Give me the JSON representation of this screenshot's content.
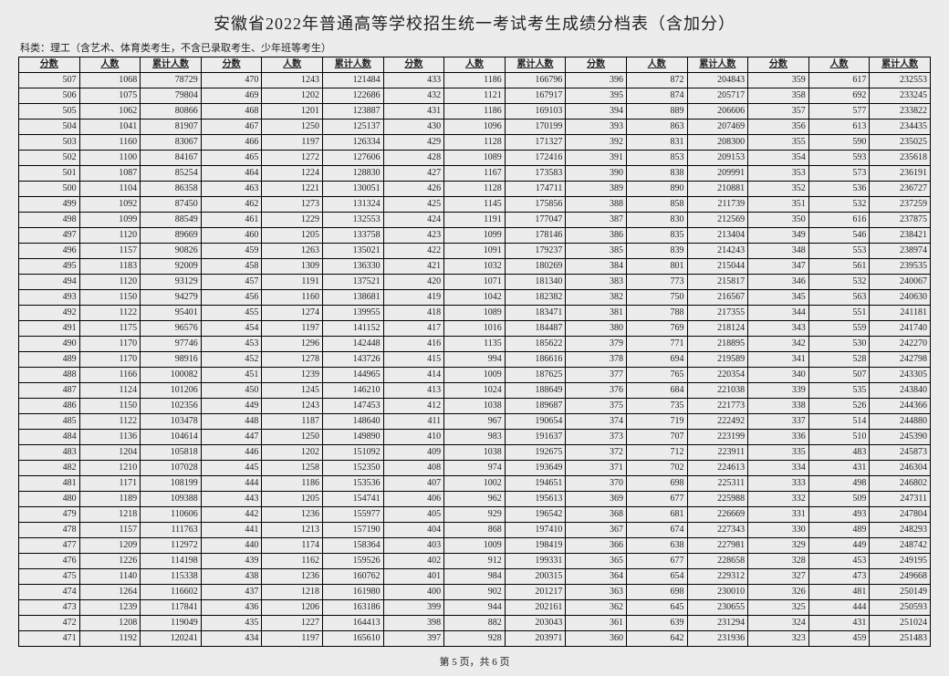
{
  "title": "安徽省2022年普通高等学校招生统一考试考生成绩分档表（含加分）",
  "subtitle": "科类：理工（含艺术、体育类考生，不含已录取考生、少年班等考生）",
  "footer": "第 5 页，共 6 页",
  "headers": [
    "分数",
    "人数",
    "累计人数",
    "分数",
    "人数",
    "累计人数",
    "分数",
    "人数",
    "累计人数",
    "分数",
    "人数",
    "累计人数",
    "分数",
    "人数",
    "累计人数"
  ],
  "rows": [
    [
      "507",
      "1068",
      "78729",
      "470",
      "1243",
      "121484",
      "433",
      "1186",
      "166796",
      "396",
      "872",
      "204843",
      "359",
      "617",
      "232553"
    ],
    [
      "506",
      "1075",
      "79804",
      "469",
      "1202",
      "122686",
      "432",
      "1121",
      "167917",
      "395",
      "874",
      "205717",
      "358",
      "692",
      "233245"
    ],
    [
      "505",
      "1062",
      "80866",
      "468",
      "1201",
      "123887",
      "431",
      "1186",
      "169103",
      "394",
      "889",
      "206606",
      "357",
      "577",
      "233822"
    ],
    [
      "504",
      "1041",
      "81907",
      "467",
      "1250",
      "125137",
      "430",
      "1096",
      "170199",
      "393",
      "863",
      "207469",
      "356",
      "613",
      "234435"
    ],
    [
      "503",
      "1160",
      "83067",
      "466",
      "1197",
      "126334",
      "429",
      "1128",
      "171327",
      "392",
      "831",
      "208300",
      "355",
      "590",
      "235025"
    ],
    [
      "502",
      "1100",
      "84167",
      "465",
      "1272",
      "127606",
      "428",
      "1089",
      "172416",
      "391",
      "853",
      "209153",
      "354",
      "593",
      "235618"
    ],
    [
      "501",
      "1087",
      "85254",
      "464",
      "1224",
      "128830",
      "427",
      "1167",
      "173583",
      "390",
      "838",
      "209991",
      "353",
      "573",
      "236191"
    ],
    [
      "500",
      "1104",
      "86358",
      "463",
      "1221",
      "130051",
      "426",
      "1128",
      "174711",
      "389",
      "890",
      "210881",
      "352",
      "536",
      "236727"
    ],
    [
      "499",
      "1092",
      "87450",
      "462",
      "1273",
      "131324",
      "425",
      "1145",
      "175856",
      "388",
      "858",
      "211739",
      "351",
      "532",
      "237259"
    ],
    [
      "498",
      "1099",
      "88549",
      "461",
      "1229",
      "132553",
      "424",
      "1191",
      "177047",
      "387",
      "830",
      "212569",
      "350",
      "616",
      "237875"
    ],
    [
      "497",
      "1120",
      "89669",
      "460",
      "1205",
      "133758",
      "423",
      "1099",
      "178146",
      "386",
      "835",
      "213404",
      "349",
      "546",
      "238421"
    ],
    [
      "496",
      "1157",
      "90826",
      "459",
      "1263",
      "135021",
      "422",
      "1091",
      "179237",
      "385",
      "839",
      "214243",
      "348",
      "553",
      "238974"
    ],
    [
      "495",
      "1183",
      "92009",
      "458",
      "1309",
      "136330",
      "421",
      "1032",
      "180269",
      "384",
      "801",
      "215044",
      "347",
      "561",
      "239535"
    ],
    [
      "494",
      "1120",
      "93129",
      "457",
      "1191",
      "137521",
      "420",
      "1071",
      "181340",
      "383",
      "773",
      "215817",
      "346",
      "532",
      "240067"
    ],
    [
      "493",
      "1150",
      "94279",
      "456",
      "1160",
      "138681",
      "419",
      "1042",
      "182382",
      "382",
      "750",
      "216567",
      "345",
      "563",
      "240630"
    ],
    [
      "492",
      "1122",
      "95401",
      "455",
      "1274",
      "139955",
      "418",
      "1089",
      "183471",
      "381",
      "788",
      "217355",
      "344",
      "551",
      "241181"
    ],
    [
      "491",
      "1175",
      "96576",
      "454",
      "1197",
      "141152",
      "417",
      "1016",
      "184487",
      "380",
      "769",
      "218124",
      "343",
      "559",
      "241740"
    ],
    [
      "490",
      "1170",
      "97746",
      "453",
      "1296",
      "142448",
      "416",
      "1135",
      "185622",
      "379",
      "771",
      "218895",
      "342",
      "530",
      "242270"
    ],
    [
      "489",
      "1170",
      "98916",
      "452",
      "1278",
      "143726",
      "415",
      "994",
      "186616",
      "378",
      "694",
      "219589",
      "341",
      "528",
      "242798"
    ],
    [
      "488",
      "1166",
      "100082",
      "451",
      "1239",
      "144965",
      "414",
      "1009",
      "187625",
      "377",
      "765",
      "220354",
      "340",
      "507",
      "243305"
    ],
    [
      "487",
      "1124",
      "101206",
      "450",
      "1245",
      "146210",
      "413",
      "1024",
      "188649",
      "376",
      "684",
      "221038",
      "339",
      "535",
      "243840"
    ],
    [
      "486",
      "1150",
      "102356",
      "449",
      "1243",
      "147453",
      "412",
      "1038",
      "189687",
      "375",
      "735",
      "221773",
      "338",
      "526",
      "244366"
    ],
    [
      "485",
      "1122",
      "103478",
      "448",
      "1187",
      "148640",
      "411",
      "967",
      "190654",
      "374",
      "719",
      "222492",
      "337",
      "514",
      "244880"
    ],
    [
      "484",
      "1136",
      "104614",
      "447",
      "1250",
      "149890",
      "410",
      "983",
      "191637",
      "373",
      "707",
      "223199",
      "336",
      "510",
      "245390"
    ],
    [
      "483",
      "1204",
      "105818",
      "446",
      "1202",
      "151092",
      "409",
      "1038",
      "192675",
      "372",
      "712",
      "223911",
      "335",
      "483",
      "245873"
    ],
    [
      "482",
      "1210",
      "107028",
      "445",
      "1258",
      "152350",
      "408",
      "974",
      "193649",
      "371",
      "702",
      "224613",
      "334",
      "431",
      "246304"
    ],
    [
      "481",
      "1171",
      "108199",
      "444",
      "1186",
      "153536",
      "407",
      "1002",
      "194651",
      "370",
      "698",
      "225311",
      "333",
      "498",
      "246802"
    ],
    [
      "480",
      "1189",
      "109388",
      "443",
      "1205",
      "154741",
      "406",
      "962",
      "195613",
      "369",
      "677",
      "225988",
      "332",
      "509",
      "247311"
    ],
    [
      "479",
      "1218",
      "110606",
      "442",
      "1236",
      "155977",
      "405",
      "929",
      "196542",
      "368",
      "681",
      "226669",
      "331",
      "493",
      "247804"
    ],
    [
      "478",
      "1157",
      "111763",
      "441",
      "1213",
      "157190",
      "404",
      "868",
      "197410",
      "367",
      "674",
      "227343",
      "330",
      "489",
      "248293"
    ],
    [
      "477",
      "1209",
      "112972",
      "440",
      "1174",
      "158364",
      "403",
      "1009",
      "198419",
      "366",
      "638",
      "227981",
      "329",
      "449",
      "248742"
    ],
    [
      "476",
      "1226",
      "114198",
      "439",
      "1162",
      "159526",
      "402",
      "912",
      "199331",
      "365",
      "677",
      "228658",
      "328",
      "453",
      "249195"
    ],
    [
      "475",
      "1140",
      "115338",
      "438",
      "1236",
      "160762",
      "401",
      "984",
      "200315",
      "364",
      "654",
      "229312",
      "327",
      "473",
      "249668"
    ],
    [
      "474",
      "1264",
      "116602",
      "437",
      "1218",
      "161980",
      "400",
      "902",
      "201217",
      "363",
      "698",
      "230010",
      "326",
      "481",
      "250149"
    ],
    [
      "473",
      "1239",
      "117841",
      "436",
      "1206",
      "163186",
      "399",
      "944",
      "202161",
      "362",
      "645",
      "230655",
      "325",
      "444",
      "250593"
    ],
    [
      "472",
      "1208",
      "119049",
      "435",
      "1227",
      "164413",
      "398",
      "882",
      "203043",
      "361",
      "639",
      "231294",
      "324",
      "431",
      "251024"
    ],
    [
      "471",
      "1192",
      "120241",
      "434",
      "1197",
      "165610",
      "397",
      "928",
      "203971",
      "360",
      "642",
      "231936",
      "323",
      "459",
      "251483"
    ]
  ]
}
